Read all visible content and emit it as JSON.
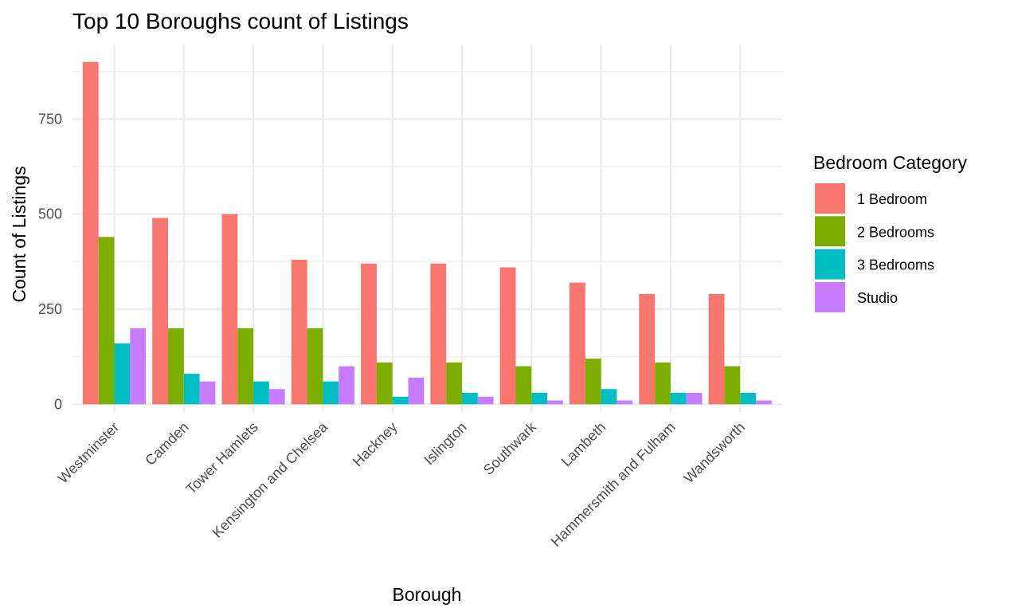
{
  "chart_data": {
    "type": "bar",
    "title": "Top 10 Boroughs count of Listings",
    "xlabel": "Borough",
    "ylabel": "Count of Listings",
    "categories": [
      "Westminster",
      "Camden",
      "Tower Hamlets",
      "Kensington and Chelsea",
      "Hackney",
      "Islington",
      "Southwark",
      "Lambeth",
      "Hammersmith and Fulham",
      "Wandsworth"
    ],
    "series": [
      {
        "name": "1 Bedroom",
        "color": "#F8766D",
        "values": [
          900,
          490,
          500,
          380,
          370,
          370,
          360,
          320,
          290,
          290
        ]
      },
      {
        "name": "2 Bedrooms",
        "color": "#7CAE00",
        "values": [
          440,
          200,
          200,
          200,
          110,
          110,
          100,
          120,
          110,
          100
        ]
      },
      {
        "name": "3 Bedrooms",
        "color": "#00BFC4",
        "values": [
          160,
          80,
          60,
          60,
          20,
          30,
          30,
          40,
          30,
          30
        ]
      },
      {
        "name": "Studio",
        "color": "#C77CFF",
        "values": [
          200,
          60,
          40,
          100,
          70,
          20,
          10,
          10,
          30,
          10
        ]
      }
    ],
    "yticks": [
      0,
      250,
      500,
      750
    ],
    "ylim": [
      0,
      900
    ],
    "grid": true,
    "legend": {
      "title": "Bedroom Category",
      "position": "right"
    }
  }
}
